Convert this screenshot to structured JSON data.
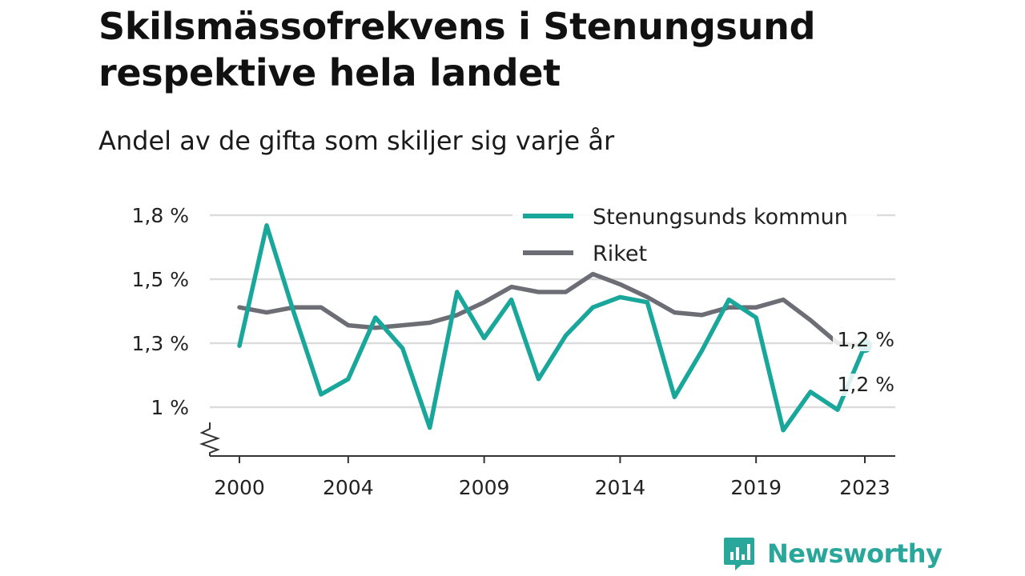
{
  "title": "Skilsmässofrekvens i Stenungsund respektive hela landet",
  "subtitle": "Andel av de gifta som skiljer sig varje år",
  "brand": {
    "name": "Newsworthy",
    "color": "#2aa79b"
  },
  "chart_data": {
    "type": "line",
    "x": [
      2000,
      2001,
      2002,
      2003,
      2004,
      2005,
      2006,
      2007,
      2008,
      2009,
      2010,
      2011,
      2012,
      2013,
      2014,
      2015,
      2016,
      2017,
      2018,
      2019,
      2020,
      2021,
      2022,
      2023
    ],
    "series": [
      {
        "name": "Stenungsunds kommun",
        "color": "#1aa79b",
        "values": [
          1.24,
          1.71,
          1.37,
          1.05,
          1.11,
          1.35,
          1.23,
          0.92,
          1.45,
          1.27,
          1.42,
          1.11,
          1.28,
          1.39,
          1.43,
          1.41,
          1.04,
          1.22,
          1.42,
          1.35,
          0.91,
          1.06,
          0.99,
          1.24
        ],
        "end_label": "1,2 %"
      },
      {
        "name": "Riket",
        "color": "#6d6d75",
        "values": [
          1.39,
          1.37,
          1.39,
          1.39,
          1.32,
          1.31,
          1.32,
          1.33,
          1.36,
          1.41,
          1.47,
          1.45,
          1.45,
          1.52,
          1.48,
          1.43,
          1.37,
          1.36,
          1.39,
          1.39,
          1.42,
          1.34,
          1.25,
          1.24
        ],
        "end_label": "1,2 %"
      }
    ],
    "x_ticks": [
      2000,
      2004,
      2009,
      2014,
      2019,
      2023
    ],
    "y_ticks": [
      {
        "value": 1.0,
        "label": "1 %"
      },
      {
        "value": 1.25,
        "label": "1,3 %"
      },
      {
        "value": 1.5,
        "label": "1,5 %"
      },
      {
        "value": 1.75,
        "label": "1,8 %"
      }
    ],
    "ylim": [
      0.8,
      1.75
    ],
    "y_axis_break": true,
    "grid": true,
    "legend_position": "top-right",
    "xlabel": "",
    "ylabel": ""
  }
}
